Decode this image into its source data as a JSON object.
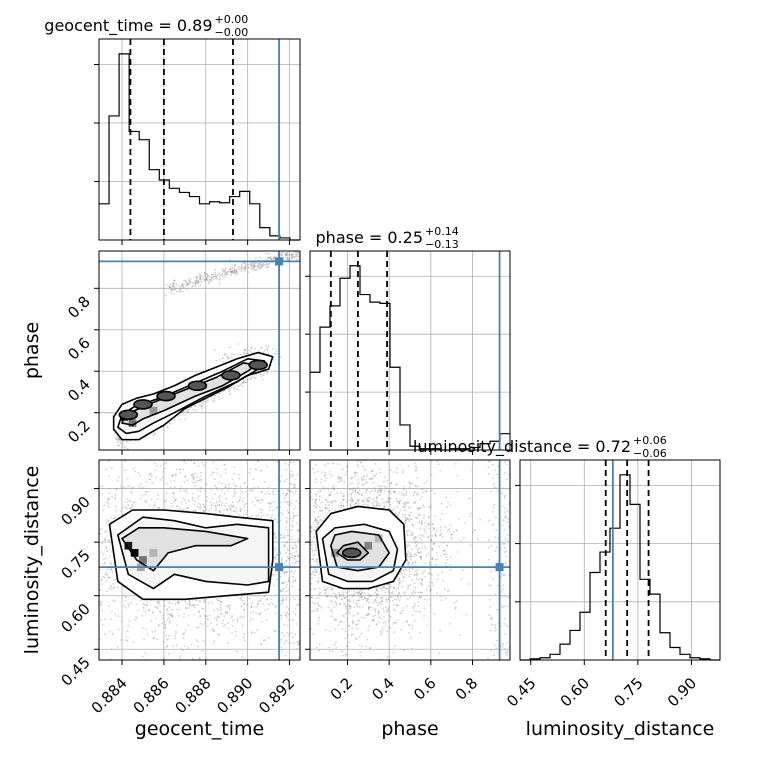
{
  "colors": {
    "truth": "#4682b4",
    "hist": "#000000",
    "quantile": "#000000",
    "scatter": "#9a9a9a"
  },
  "chart_data": {
    "type": "corner",
    "parameters": [
      "geocent_time",
      "phase",
      "luminosity_distance"
    ],
    "truths": {
      "geocent_time": 0.8915,
      "phase": 0.93,
      "luminosity_distance": 0.68
    },
    "ranges": {
      "geocent_time": [
        0.8829,
        0.8925
      ],
      "phase": [
        0.02,
        0.98
      ],
      "luminosity_distance": [
        0.42,
        0.98
      ]
    },
    "ticks": {
      "geocent_time": {
        "values": [
          0.884,
          0.886,
          0.888,
          0.89,
          0.892
        ],
        "labels": [
          "0.884",
          "0.886",
          "0.888",
          "0.890",
          "0.892"
        ]
      },
      "phase": {
        "values": [
          0.2,
          0.4,
          0.6,
          0.8
        ],
        "labels": [
          "0.2",
          "0.4",
          "0.6",
          "0.8"
        ]
      },
      "luminosity_distance": {
        "values": [
          0.45,
          0.6,
          0.75,
          0.9
        ],
        "labels": [
          "0.45",
          "0.60",
          "0.75",
          "0.90"
        ]
      }
    },
    "titles": [
      {
        "param": "geocent_time",
        "text": "geocent_time = 0.89",
        "plus": "+0.00",
        "minus": "−0.00"
      },
      {
        "param": "phase",
        "text": "phase = 0.25",
        "plus": "+0.14",
        "minus": "−0.13"
      },
      {
        "param": "luminosity_distance",
        "text": "luminosity_distance = 0.72",
        "plus": "+0.06",
        "minus": "−0.06"
      }
    ],
    "histograms": {
      "geocent_time": {
        "edges": [
          0.8829,
          0.88338,
          0.88386,
          0.88434,
          0.88482,
          0.8853,
          0.88578,
          0.88626,
          0.88674,
          0.88722,
          0.8877,
          0.88818,
          0.88866,
          0.88914,
          0.88962,
          0.8901,
          0.89058,
          0.89106,
          0.89154,
          0.89202,
          0.8925
        ],
        "counts": [
          35,
          120,
          180,
          105,
          97,
          68,
          58,
          50,
          46,
          42,
          35,
          37,
          36,
          42,
          47,
          35,
          12,
          4,
          2,
          0
        ],
        "quantiles": [
          0.8844,
          0.886,
          0.8893
        ]
      },
      "phase": {
        "edges": [
          0.02,
          0.068,
          0.116,
          0.164,
          0.212,
          0.26,
          0.308,
          0.356,
          0.404,
          0.452,
          0.5,
          0.548,
          0.596,
          0.644,
          0.692,
          0.74,
          0.788,
          0.836,
          0.884,
          0.932,
          0.98
        ],
        "counts": [
          62,
          98,
          115,
          137,
          147,
          124,
          118,
          117,
          66,
          20,
          3,
          1,
          1,
          0,
          1,
          1,
          2,
          5,
          7,
          13
        ],
        "quantiles": [
          0.12,
          0.25,
          0.39
        ]
      },
      "luminosity_distance": {
        "edges": [
          0.42,
          0.448,
          0.476,
          0.504,
          0.532,
          0.56,
          0.588,
          0.616,
          0.644,
          0.672,
          0.7,
          0.728,
          0.756,
          0.784,
          0.812,
          0.84,
          0.868,
          0.896,
          0.924,
          0.952,
          0.98
        ],
        "counts": [
          0,
          1,
          2,
          5,
          14,
          26,
          42,
          77,
          95,
          116,
          163,
          137,
          71,
          58,
          24,
          11,
          5,
          2,
          1,
          0
        ],
        "quantiles": [
          0.66,
          0.72,
          0.78
        ]
      }
    },
    "pairs": [
      {
        "x": "geocent_time",
        "y": "phase",
        "contours": [
          [
            [
              0.8836,
              0.12
            ],
            [
              0.884,
              0.07
            ],
            [
              0.8848,
              0.07
            ],
            [
              0.8853,
              0.1
            ],
            [
              0.886,
              0.14
            ],
            [
              0.887,
              0.22
            ],
            [
              0.888,
              0.27
            ],
            [
              0.889,
              0.32
            ],
            [
              0.89,
              0.38
            ],
            [
              0.891,
              0.41
            ],
            [
              0.8912,
              0.47
            ],
            [
              0.8905,
              0.49
            ],
            [
              0.8895,
              0.46
            ],
            [
              0.8885,
              0.42
            ],
            [
              0.8875,
              0.38
            ],
            [
              0.8865,
              0.33
            ],
            [
              0.8855,
              0.29
            ],
            [
              0.8847,
              0.27
            ],
            [
              0.884,
              0.24
            ],
            [
              0.8836,
              0.18
            ]
          ],
          [
            [
              0.8838,
              0.13
            ],
            [
              0.8842,
              0.1
            ],
            [
              0.8848,
              0.11
            ],
            [
              0.8855,
              0.15
            ],
            [
              0.8865,
              0.2
            ],
            [
              0.888,
              0.28
            ],
            [
              0.8895,
              0.35
            ],
            [
              0.8905,
              0.41
            ],
            [
              0.8908,
              0.45
            ],
            [
              0.89,
              0.46
            ],
            [
              0.8888,
              0.4
            ],
            [
              0.8872,
              0.33
            ],
            [
              0.8858,
              0.27
            ],
            [
              0.8846,
              0.23
            ],
            [
              0.884,
              0.19
            ]
          ],
          [
            [
              0.884,
              0.15
            ],
            [
              0.8845,
              0.14
            ],
            [
              0.885,
              0.17
            ],
            [
              0.886,
              0.21
            ],
            [
              0.8875,
              0.28
            ],
            [
              0.8888,
              0.33
            ],
            [
              0.89,
              0.4
            ],
            [
              0.8904,
              0.43
            ],
            [
              0.8898,
              0.44
            ],
            [
              0.8885,
              0.37
            ],
            [
              0.887,
              0.31
            ],
            [
              0.8855,
              0.25
            ],
            [
              0.8846,
              0.21
            ],
            [
              0.8841,
              0.18
            ]
          ]
        ],
        "blobs": [
          [
            0.8843,
            0.19
          ],
          [
            0.885,
            0.24
          ],
          [
            0.8861,
            0.28
          ],
          [
            0.8876,
            0.33
          ],
          [
            0.8892,
            0.38
          ],
          [
            0.8905,
            0.43
          ]
        ],
        "dense_cells": [
          [
            0.8841,
            0.18,
            1.0
          ],
          [
            0.8845,
            0.15,
            0.55
          ],
          [
            0.885,
            0.24,
            0.7
          ],
          [
            0.8855,
            0.21,
            0.4
          ]
        ]
      },
      {
        "x": "geocent_time",
        "y": "luminosity_distance",
        "contours": [
          [
            [
              0.8834,
              0.8
            ],
            [
              0.8838,
              0.64
            ],
            [
              0.885,
              0.59
            ],
            [
              0.887,
              0.59
            ],
            [
              0.889,
              0.6
            ],
            [
              0.891,
              0.61
            ],
            [
              0.8912,
              0.7
            ],
            [
              0.8912,
              0.81
            ],
            [
              0.8895,
              0.82
            ],
            [
              0.888,
              0.83
            ],
            [
              0.886,
              0.84
            ],
            [
              0.8845,
              0.84
            ]
          ],
          [
            [
              0.8838,
              0.77
            ],
            [
              0.8843,
              0.66
            ],
            [
              0.8855,
              0.62
            ],
            [
              0.8865,
              0.66
            ],
            [
              0.888,
              0.64
            ],
            [
              0.89,
              0.63
            ],
            [
              0.891,
              0.64
            ],
            [
              0.891,
              0.79
            ],
            [
              0.8895,
              0.8
            ],
            [
              0.888,
              0.79
            ],
            [
              0.8865,
              0.81
            ],
            [
              0.885,
              0.82
            ]
          ],
          [
            [
              0.884,
              0.76
            ],
            [
              0.8847,
              0.7
            ],
            [
              0.8855,
              0.67
            ],
            [
              0.8862,
              0.72
            ],
            [
              0.8875,
              0.74
            ],
            [
              0.8892,
              0.74
            ],
            [
              0.89,
              0.76
            ],
            [
              0.888,
              0.78
            ],
            [
              0.886,
              0.79
            ],
            [
              0.8848,
              0.79
            ]
          ]
        ],
        "blobs": [],
        "dense_cells": [
          [
            0.8843,
            0.74,
            0.9
          ],
          [
            0.8846,
            0.72,
            1.0
          ],
          [
            0.885,
            0.7,
            0.55
          ],
          [
            0.8849,
            0.68,
            0.35
          ],
          [
            0.8855,
            0.72,
            0.3
          ]
        ]
      },
      {
        "x": "phase",
        "y": "luminosity_distance",
        "contours": [
          [
            [
              0.05,
              0.78
            ],
            [
              0.08,
              0.64
            ],
            [
              0.18,
              0.62
            ],
            [
              0.3,
              0.62
            ],
            [
              0.42,
              0.64
            ],
            [
              0.48,
              0.7
            ],
            [
              0.47,
              0.8
            ],
            [
              0.4,
              0.84
            ],
            [
              0.25,
              0.85
            ],
            [
              0.12,
              0.83
            ]
          ],
          [
            [
              0.08,
              0.76
            ],
            [
              0.11,
              0.66
            ],
            [
              0.2,
              0.64
            ],
            [
              0.32,
              0.64
            ],
            [
              0.42,
              0.67
            ],
            [
              0.44,
              0.73
            ],
            [
              0.4,
              0.78
            ],
            [
              0.28,
              0.8
            ],
            [
              0.14,
              0.79
            ]
          ],
          [
            [
              0.12,
              0.74
            ],
            [
              0.15,
              0.68
            ],
            [
              0.25,
              0.67
            ],
            [
              0.35,
              0.68
            ],
            [
              0.4,
              0.72
            ],
            [
              0.35,
              0.77
            ],
            [
              0.22,
              0.78
            ],
            [
              0.14,
              0.77
            ]
          ],
          [
            [
              0.15,
              0.72
            ],
            [
              0.2,
              0.7
            ],
            [
              0.26,
              0.7
            ],
            [
              0.3,
              0.72
            ],
            [
              0.25,
              0.75
            ],
            [
              0.18,
              0.74
            ]
          ]
        ],
        "blobs": [
          [
            0.22,
            0.72
          ]
        ],
        "dense_cells": [
          [
            0.22,
            0.72,
            1.0
          ],
          [
            0.3,
            0.74,
            0.5
          ],
          [
            0.14,
            0.72,
            0.4
          ],
          [
            0.35,
            0.76,
            0.3
          ]
        ]
      }
    ],
    "tails": [
      {
        "x": "geocent_time",
        "y": "phase",
        "from": [
          0.8862,
          0.8
        ],
        "to": [
          0.8925,
          0.97
        ],
        "n": 380,
        "spread": 0.015
      },
      {
        "x": "geocent_time",
        "y": "phase",
        "from": [
          0.8838,
          0.07
        ],
        "to": [
          0.891,
          0.46
        ],
        "n": 1200,
        "spread": 0.028
      },
      {
        "x": "geocent_time",
        "y": "phase",
        "from": [
          0.8885,
          0.47
        ],
        "to": [
          0.8915,
          0.5
        ],
        "n": 60,
        "spread": 0.02
      }
    ]
  }
}
